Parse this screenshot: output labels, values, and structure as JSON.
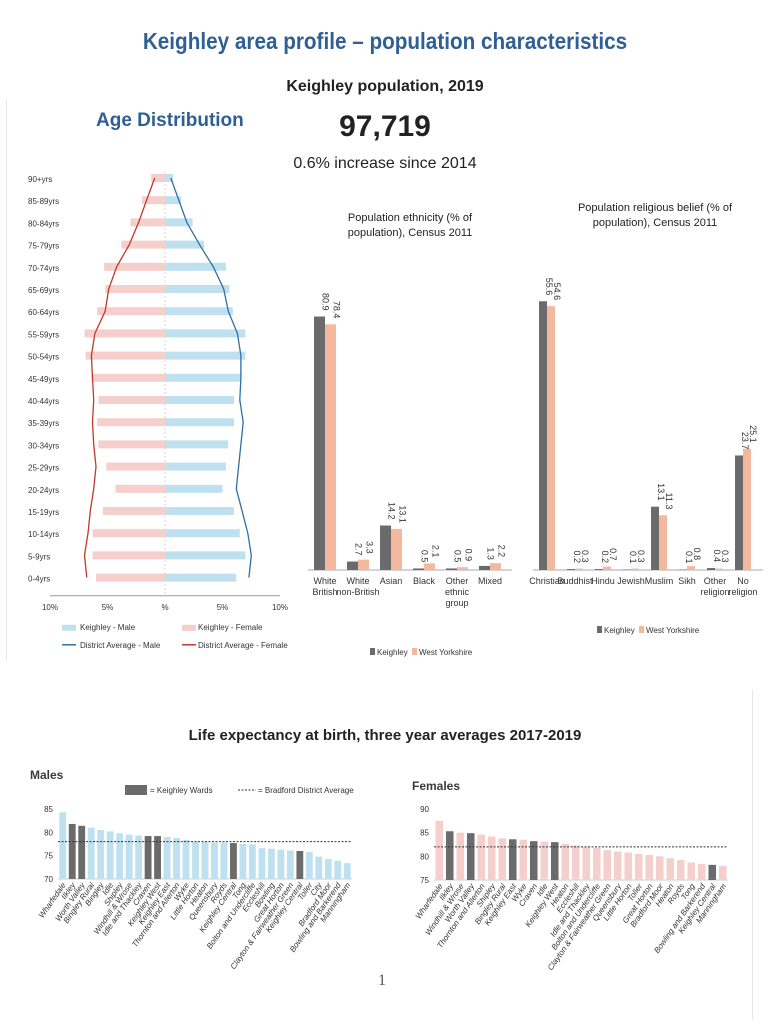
{
  "page": {
    "title": "Keighley area profile – population characteristics",
    "subtitle": "Keighley population, 2019",
    "population": "97,719",
    "increase": "0.6% increase since 2014",
    "page_number": "1",
    "colors": {
      "keighley_male": "#bfe0ef",
      "keighley_female": "#f5cfcc",
      "district_male": "#2f6fa5",
      "district_female": "#c0392b",
      "keighley_bar": "#6b6b6b",
      "wy_bar": "#f4b89e",
      "title_blue": "#2f5f95"
    }
  },
  "chart_data": [
    {
      "type": "bar",
      "orientation": "horizontal-pyramid",
      "title": "Age Distribution",
      "categories": [
        "0-4yrs",
        "5-9yrs",
        "10-14yrs",
        "15-19yrs",
        "20-24yrs",
        "25-29yrs",
        "30-34yrs",
        "35-39yrs",
        "40-44yrs",
        "45-49yrs",
        "50-54yrs",
        "55-59yrs",
        "60-64yrs",
        "65-69yrs",
        "70-74yrs",
        "75-79yrs",
        "80-84yrs",
        "85-89yrs",
        "90+yrs"
      ],
      "series": [
        {
          "name": "Keighley - Male",
          "values": [
            6.2,
            7.0,
            6.5,
            6.0,
            5.0,
            5.3,
            5.5,
            6.0,
            6.0,
            6.6,
            7.0,
            7.0,
            5.9,
            5.6,
            5.3,
            3.4,
            2.4,
            1.4,
            0.7
          ]
        },
        {
          "name": "Keighley - Female",
          "values": [
            6.0,
            6.3,
            6.3,
            5.4,
            4.3,
            5.1,
            5.8,
            5.9,
            5.8,
            6.4,
            6.9,
            7.0,
            5.9,
            5.2,
            5.3,
            3.8,
            3.0,
            2.0,
            1.2
          ]
        },
        {
          "name": "District Average - Male",
          "values": [
            7.3,
            7.5,
            7.2,
            6.7,
            6.2,
            6.4,
            6.6,
            6.8,
            6.5,
            6.6,
            6.6,
            6.3,
            5.5,
            5.1,
            4.2,
            3.0,
            1.9,
            1.2,
            0.5
          ]
        },
        {
          "name": "District Average - Female",
          "values": [
            6.8,
            7.0,
            6.7,
            6.5,
            6.2,
            6.0,
            6.2,
            6.3,
            6.2,
            6.3,
            6.4,
            6.1,
            5.2,
            4.9,
            4.2,
            3.1,
            2.3,
            1.6,
            0.9
          ]
        }
      ],
      "xticks": [
        "10%",
        "5%",
        "%",
        "5%",
        "10%"
      ],
      "xlim": [
        -10,
        10
      ],
      "legend": [
        "Keighley - Male",
        "Keighley - Female",
        "District Average - Male",
        "District Average - Female"
      ]
    },
    {
      "type": "bar",
      "title": "Population ethnicity (% of population), Census 2011",
      "categories": [
        "White British",
        "White non-British",
        "Asian",
        "Black",
        "Other ethnic group",
        "Mixed"
      ],
      "series": [
        {
          "name": "Keighley",
          "values": [
            80.9,
            2.7,
            14.2,
            0.5,
            0.5,
            1.3
          ],
          "labels": [
            "80.9",
            "2.7",
            "14.2",
            "0.5",
            "0.5",
            "1.3"
          ]
        },
        {
          "name": "West Yorkshire",
          "values": [
            78.4,
            3.3,
            13.1,
            2.1,
            0.9,
            2.2
          ],
          "labels": [
            "78.4",
            "3.3",
            "13.1",
            "2.1",
            "0.9",
            "2.2"
          ]
        }
      ],
      "ylim": [
        0,
        90
      ],
      "legend": [
        "Keighley",
        "West Yorkshire"
      ]
    },
    {
      "type": "bar",
      "title": "Population religious belief (% of population), Census 2011",
      "categories": [
        "Christian",
        "Buddhist",
        "Hindu",
        "Jewish",
        "Muslim",
        "Sikh",
        "Other religion",
        "No religion"
      ],
      "series": [
        {
          "name": "Keighley",
          "values": [
            55.6,
            0.2,
            0.2,
            0.1,
            13.1,
            0.1,
            0.4,
            23.7
          ],
          "labels": [
            "55.6",
            "0.2",
            "0.2",
            "0.1",
            "13.1",
            "0.1",
            "0.4",
            "23.7"
          ]
        },
        {
          "name": "West Yorkshire",
          "values": [
            54.6,
            0.3,
            0.7,
            0.3,
            11.3,
            0.8,
            0.3,
            25.1
          ],
          "labels": [
            "54.6",
            "0.3",
            "0.7",
            "0.3",
            "11.3",
            "0.8",
            "0.3",
            "25.1"
          ]
        }
      ],
      "ylim": [
        0,
        60
      ],
      "legend": [
        "Keighley",
        "West Yorkshire"
      ]
    },
    {
      "type": "bar",
      "title": "Males",
      "section_title": "Life expectancy at birth, three year averages 2017-2019",
      "categories": [
        "Wharfedale",
        "Ilkley",
        "Worth Valley",
        "Bingley Rural",
        "Bingley",
        "Idle",
        "Shipley",
        "Windhill & Wrose",
        "Idle and Thackley",
        "Craven",
        "Keighley West",
        "Keighley East",
        "Thornton and Allerton",
        "Wyke",
        "Little Horton",
        "Heaton",
        "Queensbury",
        "Royds",
        "Keighley Central",
        "Tong",
        "Bolton and Undercliffe",
        "Eccleshill",
        "Bowling",
        "Great Horton",
        "Clayton & Fairweather Green",
        "Keighley Central",
        "Toller",
        "City",
        "Bradford Moor",
        "Bowling and Barkerend",
        "Manningham"
      ],
      "values": [
        84.3,
        81.8,
        81.4,
        81.0,
        80.5,
        80.2,
        79.8,
        79.5,
        79.3,
        79.2,
        79.2,
        79.0,
        78.8,
        78.4,
        78.0,
        77.9,
        77.8,
        77.8,
        77.7,
        77.5,
        77.4,
        76.6,
        76.5,
        76.3,
        76.1,
        76.0,
        75.8,
        74.8,
        74.3,
        73.9,
        73.4
      ],
      "highlight": [
        false,
        true,
        true,
        false,
        false,
        false,
        false,
        false,
        false,
        true,
        true,
        false,
        false,
        false,
        false,
        false,
        false,
        false,
        true,
        false,
        false,
        false,
        false,
        false,
        false,
        true,
        false,
        false,
        false,
        false,
        false
      ],
      "district_average": 78.0,
      "yticks": [
        "70",
        "75",
        "80",
        "85"
      ],
      "ylim": [
        70,
        85
      ],
      "legend": [
        "= Keighley Wards",
        "= Bradford District Average"
      ]
    },
    {
      "type": "bar",
      "title": "Females",
      "categories": [
        "Wharfedale",
        "Ilkley",
        "Windhill & Wrose",
        "Worth Valley",
        "Thornton and Allerton",
        "Shipley",
        "Bingley Rural",
        "Keighley East",
        "Wyke",
        "Craven",
        "Idle",
        "Keighley West",
        "Heaton",
        "Eccleshill",
        "Idle and Thackley",
        "Bolton and Undercliffe",
        "Clayton & Fairweather Green",
        "Queensbury",
        "Little Horton",
        "Toller",
        "Great Horton",
        "Bradford Moor",
        "Heaton",
        "Royds",
        "Tong",
        "Bowling and Barkerend",
        "Keighley Central",
        "Manningham"
      ],
      "values": [
        87.5,
        85.3,
        85.0,
        84.9,
        84.6,
        84.2,
        83.8,
        83.6,
        83.5,
        83.2,
        83.1,
        83.0,
        82.6,
        82.3,
        82.0,
        81.8,
        81.3,
        81.0,
        80.8,
        80.5,
        80.3,
        80.0,
        79.6,
        79.2,
        78.7,
        78.4,
        78.2,
        78.0
      ],
      "highlight": [
        false,
        true,
        false,
        true,
        false,
        false,
        false,
        true,
        false,
        true,
        false,
        true,
        false,
        false,
        false,
        false,
        false,
        false,
        false,
        false,
        false,
        false,
        false,
        false,
        false,
        false,
        true,
        false
      ],
      "district_average": 82.0,
      "yticks": [
        "75",
        "80",
        "85",
        "90"
      ],
      "ylim": [
        75,
        90
      ]
    }
  ]
}
